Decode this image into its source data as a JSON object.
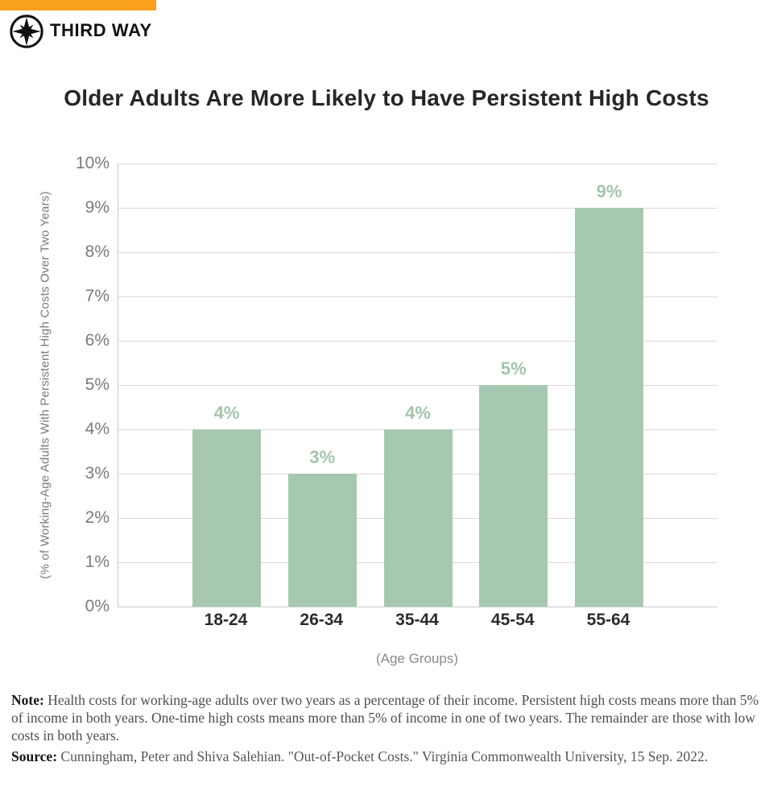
{
  "brand": {
    "name": "THIRD WAY",
    "accent_color": "#F9A11D",
    "logo_icon": "compass-icon"
  },
  "title": "Older Adults Are More Likely to Have Persistent High Costs",
  "chart_data": {
    "type": "bar",
    "categories": [
      "18-24",
      "26-34",
      "35-44",
      "45-54",
      "55-64"
    ],
    "values": [
      4,
      3,
      4,
      5,
      9
    ],
    "bar_labels": [
      "4%",
      "3%",
      "4%",
      "5%",
      "9%"
    ],
    "title": "Older Adults Are More Likely to Have Persistent High Costs",
    "xlabel": "(Age Groups)",
    "ylabel": "(% of Working-Age Adults With Persistent High Costs Over Two Years)",
    "ylim": [
      0,
      10
    ],
    "ytick_step": 1,
    "ytick_labels": [
      "0%",
      "1%",
      "2%",
      "3%",
      "4%",
      "5%",
      "6%",
      "7%",
      "8%",
      "9%",
      "10%"
    ],
    "grid": true,
    "legend": "none",
    "bar_color": "#A6C8B1",
    "bar_label_color": "#A2C5AB",
    "gridline_color": "#dadada"
  },
  "footnote": {
    "note_label": "Note:",
    "note_text": "Health costs for working-age adults over two years as a percentage of their income. Persistent high costs means more than 5% of income in both years. One-time high costs means more than 5% of income in one of two years. The remainder are those with low costs in both years.",
    "source_label": "Source:",
    "source_text": "Cunningham, Peter and Shiva Salehian. \"Out-of-Pocket Costs.\" Virginia Commonwealth University, 15 Sep. 2022."
  }
}
